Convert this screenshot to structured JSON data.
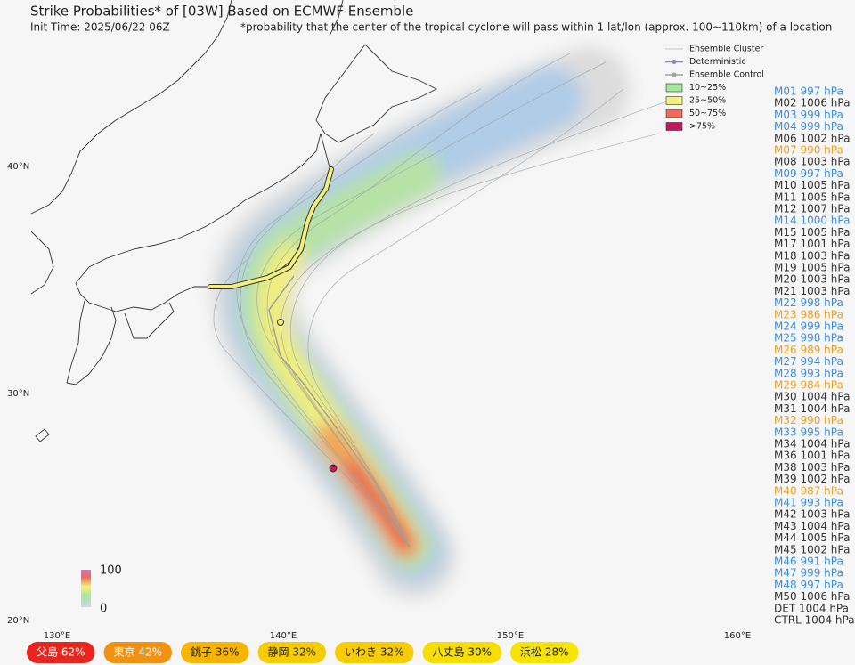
{
  "header": {
    "title": "Strike Probabilities* of [03W] Based on ECMWF Ensemble",
    "init_time": "Init Time: 2025/06/22 06Z",
    "note": "*probability that the center of the tropical cyclone will pass within 1 lat/lon (approx. 100~110km) of a location"
  },
  "legend": {
    "items": [
      {
        "label": "Ensemble Cluster",
        "kind": "line",
        "color": "#c8c8c8"
      },
      {
        "label": "Deterministic",
        "kind": "dot",
        "color": "#8a86c0"
      },
      {
        "label": "Ensemble Control",
        "kind": "dot",
        "color": "#a0a0a0"
      },
      {
        "label": "10~25%",
        "kind": "box",
        "color": "#a8e6a0"
      },
      {
        "label": "25~50%",
        "kind": "box",
        "color": "#f5f07a"
      },
      {
        "label": "50~75%",
        "kind": "box",
        "color": "#f06a5a"
      },
      {
        "label": ">75%",
        "kind": "box",
        "color": "#c2185b"
      }
    ]
  },
  "axes": {
    "lat_labels": [
      "40°N",
      "30°N",
      "20°N"
    ],
    "lon_labels": [
      "130°E",
      "140°E",
      "150°E",
      "160°E"
    ]
  },
  "colorbar": {
    "max": "100",
    "min": "0"
  },
  "members": [
    {
      "label": "M01 997 hPa",
      "color": "#3b8fe0"
    },
    {
      "label": "M02 1006 hPa",
      "color": "#333333"
    },
    {
      "label": "M03 999 hPa",
      "color": "#3b8fe0"
    },
    {
      "label": "M04 999 hPa",
      "color": "#3b8fe0"
    },
    {
      "label": "M06 1002 hPa",
      "color": "#333333"
    },
    {
      "label": "M07 990 hPa",
      "color": "#f0a020"
    },
    {
      "label": "M08 1003 hPa",
      "color": "#333333"
    },
    {
      "label": "M09 997 hPa",
      "color": "#3b8fe0"
    },
    {
      "label": "M10 1005 hPa",
      "color": "#333333"
    },
    {
      "label": "M11 1005 hPa",
      "color": "#333333"
    },
    {
      "label": "M12 1007 hPa",
      "color": "#333333"
    },
    {
      "label": "M14 1000 hPa",
      "color": "#3b8fe0"
    },
    {
      "label": "M15 1005 hPa",
      "color": "#333333"
    },
    {
      "label": "M17 1001 hPa",
      "color": "#333333"
    },
    {
      "label": "M18 1003 hPa",
      "color": "#333333"
    },
    {
      "label": "M19 1005 hPa",
      "color": "#333333"
    },
    {
      "label": "M20 1003 hPa",
      "color": "#333333"
    },
    {
      "label": "M21 1003 hPa",
      "color": "#333333"
    },
    {
      "label": "M22 998 hPa",
      "color": "#3b8fe0"
    },
    {
      "label": "M23 986 hPa",
      "color": "#f0a020"
    },
    {
      "label": "M24 999 hPa",
      "color": "#3b8fe0"
    },
    {
      "label": "M25 998 hPa",
      "color": "#3b8fe0"
    },
    {
      "label": "M26 989 hPa",
      "color": "#f0a020"
    },
    {
      "label": "M27 994 hPa",
      "color": "#3b8fe0"
    },
    {
      "label": "M28 993 hPa",
      "color": "#3b8fe0"
    },
    {
      "label": "M29 984 hPa",
      "color": "#f0a020"
    },
    {
      "label": "M30 1004 hPa",
      "color": "#333333"
    },
    {
      "label": "M31 1004 hPa",
      "color": "#333333"
    },
    {
      "label": "M32 990 hPa",
      "color": "#f0a020"
    },
    {
      "label": "M33 995 hPa",
      "color": "#3b8fe0"
    },
    {
      "label": "M34 1004 hPa",
      "color": "#333333"
    },
    {
      "label": "M36 1001 hPa",
      "color": "#333333"
    },
    {
      "label": "M38 1003 hPa",
      "color": "#333333"
    },
    {
      "label": "M39 1002 hPa",
      "color": "#333333"
    },
    {
      "label": "M40 987 hPa",
      "color": "#f0a020"
    },
    {
      "label": "M41 993 hPa",
      "color": "#3b8fe0"
    },
    {
      "label": "M42 1003 hPa",
      "color": "#333333"
    },
    {
      "label": "M43 1004 hPa",
      "color": "#333333"
    },
    {
      "label": "M44 1005 hPa",
      "color": "#333333"
    },
    {
      "label": "M45 1002 hPa",
      "color": "#333333"
    },
    {
      "label": "M46 991 hPa",
      "color": "#3b8fe0"
    },
    {
      "label": "M47 999 hPa",
      "color": "#3b8fe0"
    },
    {
      "label": "M48 997 hPa",
      "color": "#3b8fe0"
    },
    {
      "label": "M50 1006 hPa",
      "color": "#333333"
    },
    {
      "label": "DET 1004 hPa",
      "color": "#333333"
    },
    {
      "label": "CTRL 1004 hPa",
      "color": "#333333"
    }
  ],
  "locations": [
    {
      "label": "父島 62%",
      "color": "#e8261f"
    },
    {
      "label": "東京 42%",
      "color": "#f39212"
    },
    {
      "label": "銚子 36%",
      "color": "#f7b500"
    },
    {
      "label": "静岡 32%",
      "color": "#f7cc00"
    },
    {
      "label": "いわき 32%",
      "color": "#f7cc00"
    },
    {
      "label": "八丈島 30%",
      "color": "#f7dd00"
    },
    {
      "label": "浜松 28%",
      "color": "#f7e400"
    }
  ]
}
